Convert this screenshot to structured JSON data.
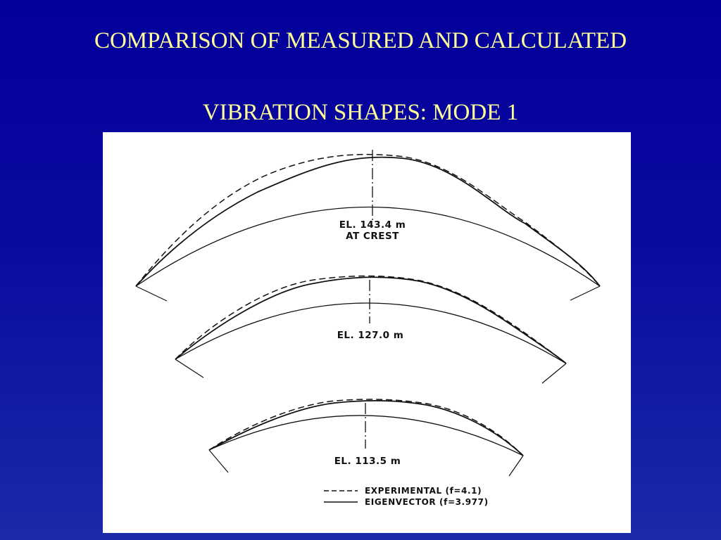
{
  "slide": {
    "title_line_1": "COMPARISON OF MEASURED AND CALCULATED",
    "title_line_2": "VIBRATION SHAPES: MODE 1",
    "title_color": "#ffff99",
    "background_color": "#04009a"
  },
  "figure": {
    "sections": [
      {
        "elevation_label": "EL. 143.4 m",
        "sub_label": "AT CREST"
      },
      {
        "elevation_label": "EL. 127.0 m"
      },
      {
        "elevation_label": "EL. 113.5 m"
      }
    ],
    "legend": [
      {
        "line_style": "dashed",
        "label": "EXPERIMENTAL  (f=4.1)"
      },
      {
        "line_style": "solid",
        "label": "EIGENVECTOR  (f=3.977)"
      }
    ]
  }
}
